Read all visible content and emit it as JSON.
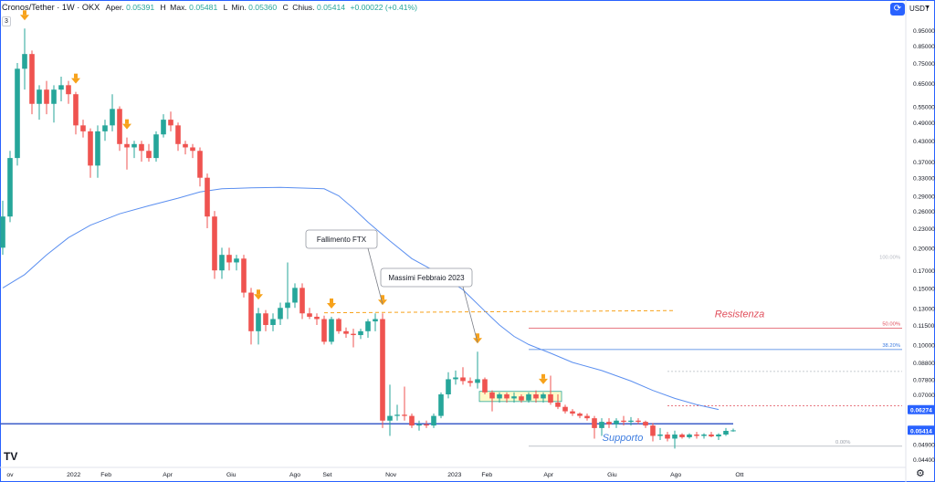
{
  "header": {
    "symbol": "Cronos/Tether · 1W · OKX",
    "open_label": "Aper.",
    "open": "0.05391",
    "high_label": "H",
    "high_label2": "Max.",
    "high": "0.05481",
    "low_label": "L",
    "low_label2": "Min.",
    "low": "0.05360",
    "close_label": "C",
    "close_label2": "Chius.",
    "close": "0.05414",
    "change": "+0.00022 (+0.41%)",
    "indicator_count": "3"
  },
  "toolbar": {
    "currency": "USDT",
    "currency_caret": "▾"
  },
  "icons": {
    "currency_button": "refresh-icon",
    "settings": "gear-icon",
    "logo": "tradingview-logo"
  },
  "colors": {
    "up": "#26a69a",
    "down": "#ef5350",
    "ma": "#5b8ff0",
    "accent": "#2962ff",
    "arrow": "#f7a21b",
    "resistance": "#e04d5a",
    "support": "#3d7ce0"
  },
  "chart_data": {
    "type": "candlestick",
    "y_scale": "log",
    "ylim": [
      0.0415,
      1.02
    ],
    "y_ticks": [
      "0.95000",
      "0.85000",
      "0.75000",
      "0.65000",
      "0.55000",
      "0.49000",
      "0.43000",
      "0.37000",
      "0.33000",
      "0.29000",
      "0.26000",
      "0.23000",
      "0.20000",
      "0.17000",
      "0.15000",
      "0.13000",
      "0.11500",
      "0.10000",
      "0.08800",
      "0.07800",
      "0.07000",
      "0.06274",
      "0.05414",
      "0.04900",
      "0.04400"
    ],
    "y_tick_values": [
      0.95,
      0.85,
      0.75,
      0.65,
      0.55,
      0.49,
      0.43,
      0.37,
      0.33,
      0.29,
      0.26,
      0.23,
      0.2,
      0.17,
      0.15,
      0.13,
      0.115,
      0.1,
      0.088,
      0.078,
      0.07,
      0.06274,
      0.05414,
      0.049,
      0.044
    ],
    "x_tick_labels": [
      "ov",
      "2022",
      "Feb",
      "Apr",
      "Giu",
      "Ago",
      "Set",
      "Nov",
      "2023",
      "Feb",
      "Apr",
      "Giu",
      "Ago",
      "Ott"
    ],
    "x_tick_dates": [
      "2021-11-01",
      "2022-01-01",
      "2022-02-01",
      "2022-04-01",
      "2022-06-01",
      "2022-08-01",
      "2022-09-01",
      "2022-11-01",
      "2023-01-01",
      "2023-02-01",
      "2023-04-01",
      "2023-06-01",
      "2023-08-01",
      "2023-10-01"
    ],
    "price_badges": [
      {
        "value": 0.06274,
        "label": "0.06274",
        "color": "#2962ff"
      },
      {
        "value": 0.05414,
        "label": "0.05414",
        "color": "#2962ff"
      }
    ],
    "candles": [
      [
        0.2,
        0.28,
        0.19,
        0.25
      ],
      [
        0.25,
        0.4,
        0.24,
        0.38
      ],
      [
        0.38,
        0.75,
        0.36,
        0.72
      ],
      [
        0.72,
        0.96,
        0.62,
        0.8
      ],
      [
        0.8,
        0.82,
        0.52,
        0.56
      ],
      [
        0.56,
        0.64,
        0.5,
        0.62
      ],
      [
        0.62,
        0.66,
        0.52,
        0.56
      ],
      [
        0.56,
        0.64,
        0.49,
        0.62
      ],
      [
        0.62,
        0.68,
        0.57,
        0.64
      ],
      [
        0.64,
        0.66,
        0.56,
        0.6
      ],
      [
        0.6,
        0.61,
        0.45,
        0.48
      ],
      [
        0.48,
        0.5,
        0.44,
        0.46
      ],
      [
        0.46,
        0.47,
        0.33,
        0.36
      ],
      [
        0.36,
        0.48,
        0.33,
        0.46
      ],
      [
        0.46,
        0.5,
        0.43,
        0.48
      ],
      [
        0.48,
        0.6,
        0.46,
        0.54
      ],
      [
        0.54,
        0.55,
        0.4,
        0.42
      ],
      [
        0.42,
        0.44,
        0.35,
        0.41
      ],
      [
        0.41,
        0.43,
        0.38,
        0.42
      ],
      [
        0.42,
        0.43,
        0.37,
        0.4
      ],
      [
        0.4,
        0.42,
        0.37,
        0.38
      ],
      [
        0.38,
        0.46,
        0.37,
        0.45
      ],
      [
        0.45,
        0.52,
        0.44,
        0.5
      ],
      [
        0.5,
        0.53,
        0.46,
        0.48
      ],
      [
        0.48,
        0.49,
        0.4,
        0.42
      ],
      [
        0.42,
        0.43,
        0.39,
        0.41
      ],
      [
        0.41,
        0.42,
        0.38,
        0.4
      ],
      [
        0.4,
        0.41,
        0.31,
        0.33
      ],
      [
        0.33,
        0.34,
        0.23,
        0.25
      ],
      [
        0.25,
        0.26,
        0.16,
        0.17
      ],
      [
        0.17,
        0.2,
        0.16,
        0.19
      ],
      [
        0.19,
        0.2,
        0.17,
        0.18
      ],
      [
        0.18,
        0.19,
        0.17,
        0.185
      ],
      [
        0.185,
        0.19,
        0.14,
        0.145
      ],
      [
        0.145,
        0.15,
        0.1,
        0.11
      ],
      [
        0.11,
        0.13,
        0.1,
        0.125
      ],
      [
        0.125,
        0.128,
        0.11,
        0.115
      ],
      [
        0.115,
        0.125,
        0.11,
        0.12
      ],
      [
        0.12,
        0.135,
        0.115,
        0.13
      ],
      [
        0.13,
        0.18,
        0.12,
        0.135
      ],
      [
        0.135,
        0.155,
        0.13,
        0.15
      ],
      [
        0.15,
        0.155,
        0.12,
        0.125
      ],
      [
        0.125,
        0.13,
        0.12,
        0.122
      ],
      [
        0.122,
        0.125,
        0.115,
        0.12
      ],
      [
        0.12,
        0.123,
        0.1,
        0.102
      ],
      [
        0.102,
        0.122,
        0.1,
        0.12
      ],
      [
        0.12,
        0.121,
        0.108,
        0.11
      ],
      [
        0.11,
        0.113,
        0.105,
        0.108
      ],
      [
        0.108,
        0.112,
        0.098,
        0.107
      ],
      [
        0.107,
        0.112,
        0.104,
        0.11
      ],
      [
        0.11,
        0.12,
        0.105,
        0.118
      ],
      [
        0.118,
        0.125,
        0.11,
        0.12
      ],
      [
        0.12,
        0.125,
        0.055,
        0.058
      ],
      [
        0.058,
        0.075,
        0.052,
        0.06
      ],
      [
        0.06,
        0.065,
        0.058,
        0.0605
      ],
      [
        0.0605,
        0.074,
        0.058,
        0.06
      ],
      [
        0.06,
        0.061,
        0.055,
        0.056
      ],
      [
        0.056,
        0.058,
        0.054,
        0.0565
      ],
      [
        0.0565,
        0.058,
        0.055,
        0.056
      ],
      [
        0.056,
        0.061,
        0.055,
        0.06
      ],
      [
        0.06,
        0.071,
        0.059,
        0.07
      ],
      [
        0.07,
        0.082,
        0.068,
        0.078
      ],
      [
        0.078,
        0.083,
        0.075,
        0.079
      ],
      [
        0.079,
        0.085,
        0.075,
        0.077
      ],
      [
        0.077,
        0.079,
        0.074,
        0.076
      ],
      [
        0.076,
        0.095,
        0.073,
        0.078
      ],
      [
        0.078,
        0.079,
        0.07,
        0.071
      ],
      [
        0.071,
        0.072,
        0.062,
        0.068
      ],
      [
        0.068,
        0.071,
        0.066,
        0.07
      ],
      [
        0.07,
        0.071,
        0.066,
        0.068
      ],
      [
        0.068,
        0.071,
        0.066,
        0.069
      ],
      [
        0.069,
        0.07,
        0.066,
        0.067
      ],
      [
        0.067,
        0.071,
        0.066,
        0.07
      ],
      [
        0.07,
        0.072,
        0.066,
        0.068
      ],
      [
        0.068,
        0.071,
        0.066,
        0.07
      ],
      [
        0.07,
        0.08,
        0.065,
        0.066
      ],
      [
        0.066,
        0.07,
        0.063,
        0.064
      ],
      [
        0.064,
        0.065,
        0.061,
        0.062
      ],
      [
        0.062,
        0.063,
        0.06,
        0.061
      ],
      [
        0.061,
        0.0615,
        0.059,
        0.06
      ],
      [
        0.06,
        0.061,
        0.058,
        0.059
      ],
      [
        0.059,
        0.06,
        0.051,
        0.055
      ],
      [
        0.055,
        0.059,
        0.052,
        0.0575
      ],
      [
        0.0575,
        0.059,
        0.055,
        0.0565
      ],
      [
        0.0565,
        0.059,
        0.055,
        0.058
      ],
      [
        0.058,
        0.06,
        0.056,
        0.0575
      ],
      [
        0.0575,
        0.0595,
        0.056,
        0.058
      ],
      [
        0.058,
        0.059,
        0.0565,
        0.0575
      ],
      [
        0.0575,
        0.058,
        0.055,
        0.056
      ],
      [
        0.056,
        0.057,
        0.05,
        0.052
      ],
      [
        0.052,
        0.055,
        0.0505,
        0.0525
      ],
      [
        0.0525,
        0.0535,
        0.05,
        0.051
      ],
      [
        0.051,
        0.054,
        0.0475,
        0.0525
      ],
      [
        0.0525,
        0.053,
        0.051,
        0.0515
      ],
      [
        0.0515,
        0.053,
        0.051,
        0.0525
      ],
      [
        0.0525,
        0.0535,
        0.051,
        0.052
      ],
      [
        0.052,
        0.053,
        0.051,
        0.0525
      ],
      [
        0.0525,
        0.0535,
        0.0515,
        0.0518
      ],
      [
        0.0518,
        0.053,
        0.0505,
        0.0525
      ],
      [
        0.0525,
        0.055,
        0.052,
        0.0539
      ],
      [
        0.0539,
        0.0548,
        0.0536,
        0.0541
      ]
    ],
    "moving_average": [
      [
        0,
        0.15
      ],
      [
        3,
        0.165
      ],
      [
        6,
        0.19
      ],
      [
        9,
        0.215
      ],
      [
        12,
        0.235
      ],
      [
        16,
        0.255
      ],
      [
        20,
        0.27
      ],
      [
        24,
        0.285
      ],
      [
        27,
        0.298
      ],
      [
        30,
        0.305
      ],
      [
        34,
        0.307
      ],
      [
        38,
        0.308
      ],
      [
        42,
        0.306
      ],
      [
        44,
        0.305
      ],
      [
        46,
        0.29
      ],
      [
        48,
        0.265
      ],
      [
        50,
        0.24
      ],
      [
        53,
        0.21
      ],
      [
        56,
        0.185
      ],
      [
        60,
        0.165
      ],
      [
        63,
        0.148
      ],
      [
        66,
        0.127
      ],
      [
        68,
        0.115
      ],
      [
        70,
        0.106
      ],
      [
        72,
        0.1
      ],
      [
        75,
        0.094
      ],
      [
        78,
        0.088
      ],
      [
        82,
        0.083
      ],
      [
        86,
        0.077
      ],
      [
        89,
        0.072
      ],
      [
        92,
        0.068
      ],
      [
        95,
        0.065
      ],
      [
        98,
        0.0628
      ]
    ],
    "annotations": [
      {
        "text": "Fallimento FTX",
        "candle": 52
      },
      {
        "text": "Massimi Febbraio 2023",
        "candle": 65
      }
    ],
    "labels": [
      {
        "text": "Resistenza",
        "y": 0.125,
        "color": "#e04d5a"
      },
      {
        "text": "Supporto",
        "y": 0.0515,
        "color": "#3d7ce0"
      }
    ],
    "fib_levels": [
      {
        "text": "100.00%",
        "y": 0.181
      },
      {
        "text": "50.00%",
        "y": 0.1125
      },
      {
        "text": "38.20%",
        "y": 0.0965
      },
      {
        "text": "0.00%",
        "y": 0.0483
      }
    ],
    "arrows_at": [
      3,
      10,
      17,
      35,
      45,
      52,
      65,
      74
    ],
    "resistance_level": 0.1255,
    "support_level": 0.0567
  }
}
